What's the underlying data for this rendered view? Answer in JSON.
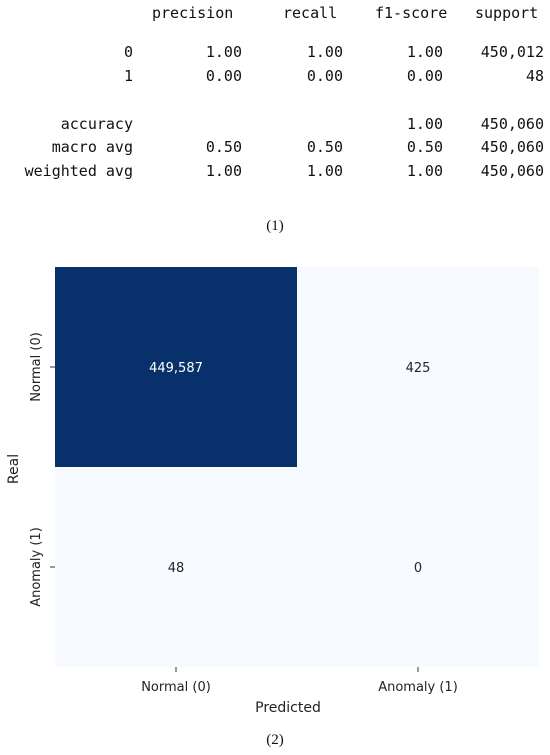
{
  "report": {
    "headers": [
      "precision",
      "recall",
      "f1-score",
      "support"
    ],
    "rows": [
      {
        "label": "0",
        "precision": "1.00",
        "recall": "1.00",
        "f1": "1.00",
        "support": "450,012"
      },
      {
        "label": "1",
        "precision": "0.00",
        "recall": "0.00",
        "f1": "0.00",
        "support": "48"
      },
      {
        "label": "accuracy",
        "precision": "",
        "recall": "",
        "f1": "1.00",
        "support": "450,060"
      },
      {
        "label": "macro avg",
        "precision": "0.50",
        "recall": "0.50",
        "f1": "0.50",
        "support": "450,060"
      },
      {
        "label": "weighted avg",
        "precision": "1.00",
        "recall": "1.00",
        "f1": "1.00",
        "support": "450,060"
      }
    ]
  },
  "caption1": "(1)",
  "caption2": "(2)",
  "chart_data": {
    "type": "heatmap",
    "xlabel": "Predicted",
    "ylabel": "Real",
    "x_categories": [
      "Normal (0)",
      "Anomaly (1)"
    ],
    "y_categories": [
      "Normal (0)",
      "Anomaly (1)"
    ],
    "values": [
      [
        449587,
        425
      ],
      [
        48,
        0
      ]
    ],
    "value_labels": [
      [
        "449,587",
        "425"
      ],
      [
        "48",
        "0"
      ]
    ],
    "colormap": "Blues",
    "colors": {
      "high": "#08306b",
      "low": "#f7fbff",
      "text_dark_bg": "#ffffff",
      "text_light_bg": "#262626"
    }
  }
}
